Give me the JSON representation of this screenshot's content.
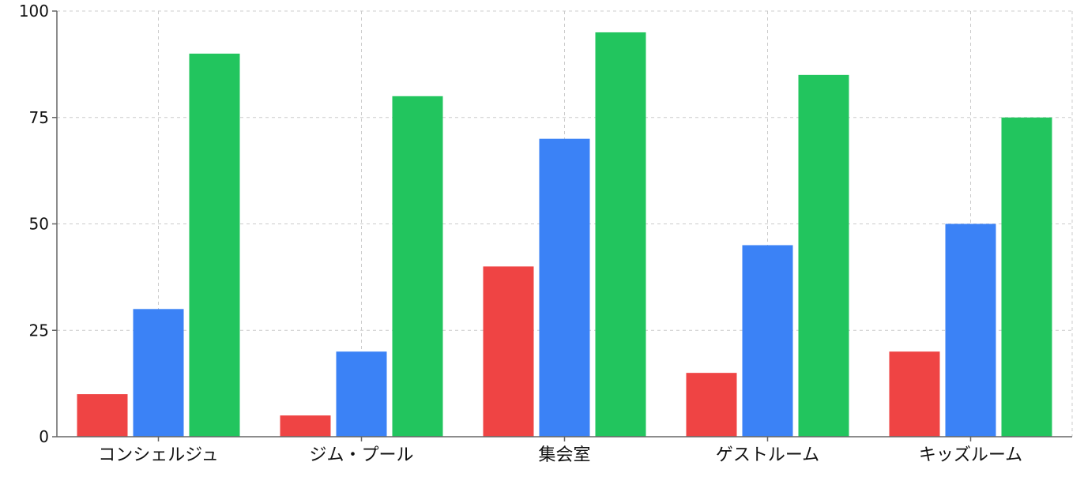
{
  "chart_data": {
    "type": "bar",
    "categories": [
      "コンシェルジュ",
      "ジム・プール",
      "集会室",
      "ゲストルーム",
      "キッズルーム"
    ],
    "series": [
      {
        "values": [
          10,
          5,
          40,
          15,
          20
        ],
        "color": "#ef4444"
      },
      {
        "values": [
          30,
          20,
          70,
          45,
          50
        ],
        "color": "#3b82f6"
      },
      {
        "values": [
          90,
          80,
          95,
          85,
          75
        ],
        "color": "#22c55e"
      }
    ],
    "ylim": [
      0,
      100
    ],
    "yticks": [
      0,
      25,
      50,
      75,
      100
    ],
    "grid": true,
    "legend": "none",
    "title": "",
    "xlabel": "",
    "ylabel": ""
  }
}
